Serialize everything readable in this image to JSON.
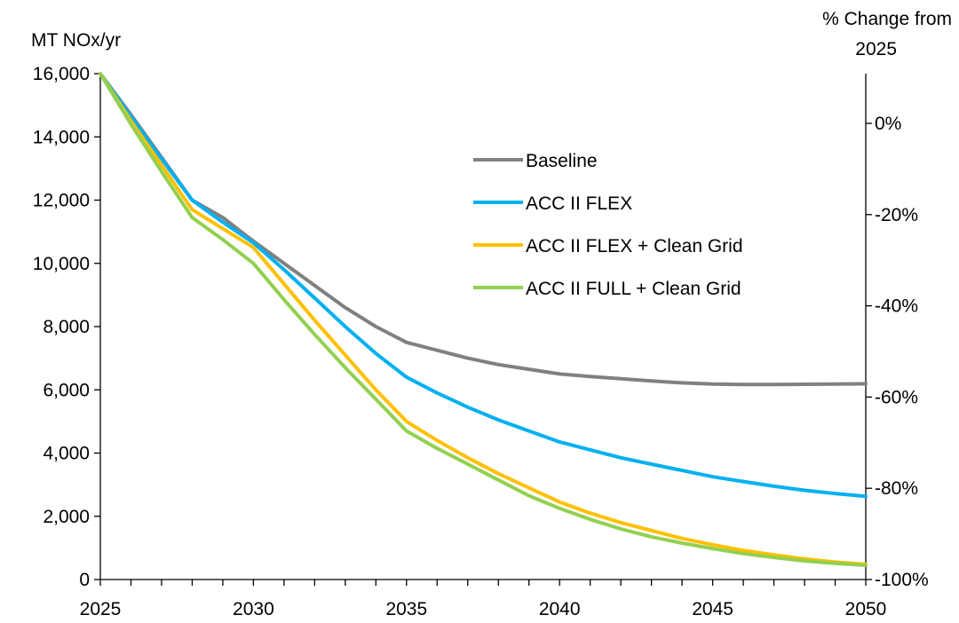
{
  "chart_data": {
    "type": "line",
    "title": "",
    "ylabel": "MT NOx/yr",
    "y2label_line1": "% Change from",
    "y2label_line2": "2025",
    "x": [
      2025,
      2026,
      2027,
      2028,
      2029,
      2030,
      2031,
      2032,
      2033,
      2034,
      2035,
      2036,
      2037,
      2038,
      2039,
      2040,
      2041,
      2042,
      2043,
      2044,
      2045,
      2046,
      2047,
      2048,
      2049,
      2050
    ],
    "xlim": [
      2025,
      2050
    ],
    "ylim": [
      0,
      16000
    ],
    "y2lim": [
      -100,
      0
    ],
    "xticks": [
      2025,
      2030,
      2035,
      2040,
      2045,
      2050
    ],
    "yticks": [
      0,
      2000,
      4000,
      6000,
      8000,
      10000,
      12000,
      14000,
      16000
    ],
    "xtick_labels": [
      "2025",
      "2030",
      "2035",
      "2040",
      "2045",
      "2050"
    ],
    "ytick_labels": [
      "0",
      "2,000",
      "4,000",
      "6,000",
      "8,000",
      "10,000",
      "12,000",
      "14,000",
      "16,000"
    ],
    "y2ticks": [
      0,
      -20,
      -40,
      -60,
      -80,
      -100
    ],
    "y2tick_labels": [
      "0%",
      "-20%",
      "-40%",
      "-60%",
      "-80%",
      "-100%"
    ],
    "grid": false,
    "legend_position": "center-right",
    "series": [
      {
        "name": "Baseline",
        "color": "#808080",
        "values": [
          16000,
          14700,
          13350,
          12000,
          11450,
          10700,
          10000,
          9300,
          8600,
          8000,
          7500,
          7250,
          7000,
          6800,
          6650,
          6500,
          6420,
          6350,
          6280,
          6220,
          6180,
          6170,
          6170,
          6175,
          6180,
          6190
        ]
      },
      {
        "name": "ACC II FLEX",
        "color": "#00B0F0",
        "values": [
          16000,
          14650,
          13300,
          12000,
          11300,
          10650,
          9800,
          8900,
          8000,
          7150,
          6400,
          5900,
          5450,
          5050,
          4700,
          4350,
          4100,
          3850,
          3650,
          3450,
          3250,
          3100,
          2950,
          2820,
          2720,
          2630
        ]
      },
      {
        "name": "ACC II FLEX + Clean Grid",
        "color": "#FFC000",
        "values": [
          16000,
          14500,
          13100,
          11700,
          11100,
          10500,
          9350,
          8200,
          7100,
          6000,
          5000,
          4400,
          3850,
          3350,
          2900,
          2450,
          2100,
          1800,
          1550,
          1300,
          1100,
          920,
          780,
          650,
          550,
          480
        ]
      },
      {
        "name": "ACC II FULL + Clean Grid",
        "color": "#92D050",
        "values": [
          16000,
          14400,
          12900,
          11450,
          10750,
          10000,
          8850,
          7750,
          6700,
          5700,
          4700,
          4150,
          3650,
          3150,
          2650,
          2250,
          1900,
          1600,
          1350,
          1150,
          980,
          820,
          700,
          590,
          510,
          450
        ]
      }
    ]
  }
}
